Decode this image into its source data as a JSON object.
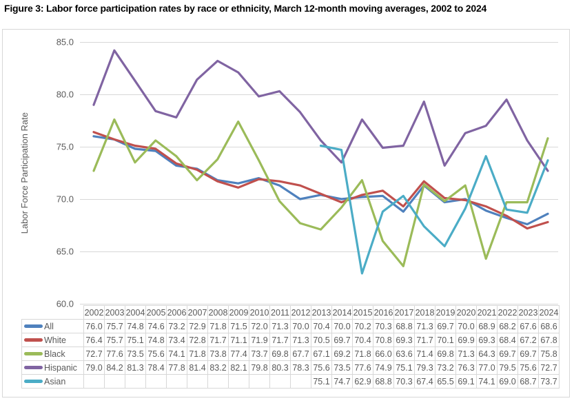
{
  "title": "Figure 3: Labor force participation rates by race or ethnicity, March 12-month moving averages, 2002 to 2024",
  "chart": {
    "y_axis_title": "Labor Force Participation Rate"
  },
  "chart_data": {
    "type": "line",
    "title": "Figure 3: Labor force participation rates by race or ethnicity, March 12-month moving averages, 2002 to 2024",
    "xlabel": "",
    "ylabel": "Labor Force Participation Rate",
    "ylim": [
      60.0,
      85.0
    ],
    "yticks": [
      60.0,
      65.0,
      70.0,
      75.0,
      80.0,
      85.0
    ],
    "grid": "horizontal",
    "legend_position": "data-table-left-column",
    "gridline_color": "#d7d7d7",
    "axis_text_color": "#595959",
    "x": [
      2002,
      2003,
      2004,
      2005,
      2006,
      2007,
      2008,
      2009,
      2010,
      2011,
      2012,
      2013,
      2014,
      2015,
      2016,
      2017,
      2018,
      2019,
      2020,
      2021,
      2022,
      2023,
      2024
    ],
    "series": [
      {
        "name": "All",
        "color": "#4F81BD",
        "values": [
          76.0,
          75.7,
          74.8,
          74.6,
          73.2,
          72.9,
          71.8,
          71.5,
          72.0,
          71.3,
          70.0,
          70.4,
          70.0,
          70.2,
          70.3,
          68.8,
          71.3,
          69.7,
          70.0,
          68.9,
          68.2,
          67.6,
          68.6
        ]
      },
      {
        "name": "White",
        "color": "#C0504D",
        "values": [
          76.4,
          75.7,
          75.1,
          74.8,
          73.4,
          72.8,
          71.7,
          71.1,
          71.9,
          71.7,
          71.3,
          70.5,
          69.7,
          70.4,
          70.8,
          69.3,
          71.7,
          70.1,
          69.9,
          69.3,
          68.4,
          67.2,
          67.8
        ]
      },
      {
        "name": "Black",
        "color": "#9BBB59",
        "values": [
          72.7,
          77.6,
          73.5,
          75.6,
          74.1,
          71.8,
          73.8,
          77.4,
          73.7,
          69.8,
          67.7,
          67.1,
          69.2,
          71.8,
          66.0,
          63.6,
          71.4,
          69.8,
          71.3,
          64.3,
          69.7,
          69.7,
          75.8
        ]
      },
      {
        "name": "Hispanic",
        "color": "#8064A2",
        "values": [
          79.0,
          84.2,
          81.3,
          78.4,
          77.8,
          81.4,
          83.2,
          82.1,
          79.8,
          80.3,
          78.3,
          75.6,
          73.5,
          77.6,
          74.9,
          75.1,
          79.3,
          73.2,
          76.3,
          77.0,
          79.5,
          75.6,
          72.7
        ]
      },
      {
        "name": "Asian",
        "color": "#4BACC6",
        "values": [
          null,
          null,
          null,
          null,
          null,
          null,
          null,
          null,
          null,
          null,
          null,
          75.1,
          74.7,
          62.9,
          68.8,
          70.3,
          67.4,
          65.5,
          69.1,
          74.1,
          69.0,
          68.7,
          73.7
        ]
      }
    ]
  }
}
